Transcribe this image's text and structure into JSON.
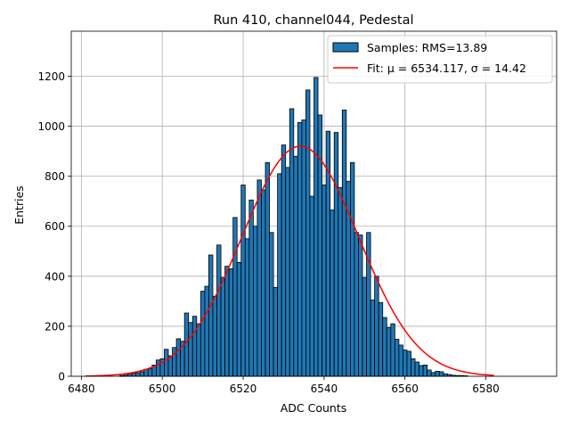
{
  "chart_data": {
    "type": "bar",
    "title": "Run 410, channel044, Pedestal",
    "xlabel": "ADC Counts",
    "ylabel": "Entries",
    "xlim": [
      6477.5,
      6597.5
    ],
    "ylim": [
      0,
      1380
    ],
    "xticks": [
      6480,
      6500,
      6520,
      6540,
      6560,
      6580
    ],
    "yticks": [
      0,
      200,
      400,
      600,
      800,
      1000,
      1200
    ],
    "grid": true,
    "legend_position": "top-right",
    "legend": {
      "histogram_label": "Samples: RMS=13.89",
      "fit_label": "Fit: μ = 6534.117, σ = 14.42"
    },
    "colors": {
      "bars": "#1f77b4",
      "bar_edge": "#000000",
      "fit": "#ff0000",
      "grid": "#b0b0b0"
    },
    "bin_width": 1,
    "bins": [
      {
        "x": 6490,
        "y": 3
      },
      {
        "x": 6491,
        "y": 5
      },
      {
        "x": 6492,
        "y": 8
      },
      {
        "x": 6493,
        "y": 12
      },
      {
        "x": 6494,
        "y": 14
      },
      {
        "x": 6495,
        "y": 18
      },
      {
        "x": 6496,
        "y": 28
      },
      {
        "x": 6497,
        "y": 30
      },
      {
        "x": 6498,
        "y": 45
      },
      {
        "x": 6499,
        "y": 65
      },
      {
        "x": 6500,
        "y": 70
      },
      {
        "x": 6501,
        "y": 108
      },
      {
        "x": 6502,
        "y": 82
      },
      {
        "x": 6503,
        "y": 115
      },
      {
        "x": 6504,
        "y": 150
      },
      {
        "x": 6505,
        "y": 140
      },
      {
        "x": 6506,
        "y": 253
      },
      {
        "x": 6507,
        "y": 215
      },
      {
        "x": 6508,
        "y": 240
      },
      {
        "x": 6509,
        "y": 210
      },
      {
        "x": 6510,
        "y": 340
      },
      {
        "x": 6511,
        "y": 360
      },
      {
        "x": 6512,
        "y": 485
      },
      {
        "x": 6513,
        "y": 320
      },
      {
        "x": 6514,
        "y": 525
      },
      {
        "x": 6515,
        "y": 395
      },
      {
        "x": 6516,
        "y": 440
      },
      {
        "x": 6517,
        "y": 430
      },
      {
        "x": 6518,
        "y": 635
      },
      {
        "x": 6519,
        "y": 455
      },
      {
        "x": 6520,
        "y": 765
      },
      {
        "x": 6521,
        "y": 550
      },
      {
        "x": 6522,
        "y": 705
      },
      {
        "x": 6523,
        "y": 600
      },
      {
        "x": 6524,
        "y": 785
      },
      {
        "x": 6525,
        "y": 745
      },
      {
        "x": 6526,
        "y": 855
      },
      {
        "x": 6527,
        "y": 575
      },
      {
        "x": 6528,
        "y": 355
      },
      {
        "x": 6529,
        "y": 810
      },
      {
        "x": 6530,
        "y": 925
      },
      {
        "x": 6531,
        "y": 835
      },
      {
        "x": 6532,
        "y": 1070
      },
      {
        "x": 6533,
        "y": 880
      },
      {
        "x": 6534,
        "y": 1015
      },
      {
        "x": 6535,
        "y": 1025
      },
      {
        "x": 6536,
        "y": 1145
      },
      {
        "x": 6537,
        "y": 720
      },
      {
        "x": 6538,
        "y": 1195
      },
      {
        "x": 6539,
        "y": 1045
      },
      {
        "x": 6540,
        "y": 765
      },
      {
        "x": 6541,
        "y": 980
      },
      {
        "x": 6542,
        "y": 665
      },
      {
        "x": 6543,
        "y": 975
      },
      {
        "x": 6544,
        "y": 755
      },
      {
        "x": 6545,
        "y": 1065
      },
      {
        "x": 6546,
        "y": 780
      },
      {
        "x": 6547,
        "y": 855
      },
      {
        "x": 6548,
        "y": 575
      },
      {
        "x": 6549,
        "y": 565
      },
      {
        "x": 6550,
        "y": 395
      },
      {
        "x": 6551,
        "y": 575
      },
      {
        "x": 6552,
        "y": 305
      },
      {
        "x": 6553,
        "y": 400
      },
      {
        "x": 6554,
        "y": 295
      },
      {
        "x": 6555,
        "y": 235
      },
      {
        "x": 6556,
        "y": 195
      },
      {
        "x": 6557,
        "y": 210
      },
      {
        "x": 6558,
        "y": 148
      },
      {
        "x": 6559,
        "y": 125
      },
      {
        "x": 6560,
        "y": 105
      },
      {
        "x": 6561,
        "y": 100
      },
      {
        "x": 6562,
        "y": 70
      },
      {
        "x": 6563,
        "y": 57
      },
      {
        "x": 6564,
        "y": 43
      },
      {
        "x": 6565,
        "y": 45
      },
      {
        "x": 6566,
        "y": 25
      },
      {
        "x": 6567,
        "y": 15
      },
      {
        "x": 6568,
        "y": 20
      },
      {
        "x": 6569,
        "y": 18
      },
      {
        "x": 6570,
        "y": 10
      },
      {
        "x": 6571,
        "y": 7
      },
      {
        "x": 6572,
        "y": 4
      },
      {
        "x": 6573,
        "y": 3
      },
      {
        "x": 6574,
        "y": 3
      },
      {
        "x": 6575,
        "y": 2
      }
    ],
    "fit": {
      "type": "gaussian",
      "mu": 6534.117,
      "sigma": 14.42,
      "amplitude": 920,
      "x_range": [
        6481,
        6582
      ]
    }
  }
}
